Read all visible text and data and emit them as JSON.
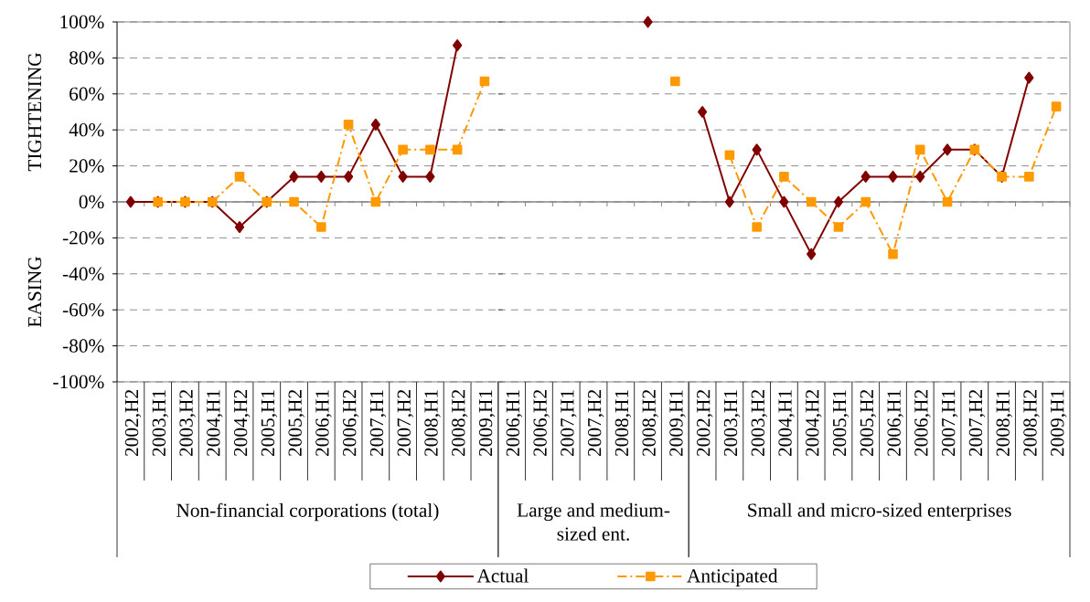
{
  "chart_data": [
    {
      "type": "line",
      "xlabel": "Non-financial corporations (total)",
      "annotations": [
        "TIGHTENING",
        "EASING"
      ],
      "categories": [
        "2002,H2",
        "2003,H1",
        "2003,H2",
        "2004,H1",
        "2004,H2",
        "2005,H1",
        "2005,H2",
        "2006,H1",
        "2006,H2",
        "2007,H1",
        "2007,H2",
        "2008,H1",
        "2008,H2",
        "2009,H1"
      ],
      "series": [
        {
          "color": "#800000",
          "marker": "diamond",
          "line_style": "solid",
          "values": [
            0,
            0,
            0,
            0,
            -14,
            0,
            14,
            14,
            14,
            43,
            14,
            14,
            87,
            null
          ]
        },
        {
          "color": "#ff9900",
          "marker": "square",
          "line_style": "dashed",
          "values": [
            null,
            0,
            0,
            0,
            14,
            0,
            0,
            -14,
            43,
            0,
            29,
            29,
            29,
            67
          ]
        }
      ],
      "ylim": [
        -100,
        100
      ],
      "yticks": [
        {
          "value": -100,
          "label": "-100%"
        },
        {
          "value": -80,
          "label": "-80%"
        },
        {
          "value": -60,
          "label": "-60%"
        },
        {
          "value": -40,
          "label": "-40%"
        },
        {
          "value": -20,
          "label": "-20%"
        },
        {
          "value": 0,
          "label": "0%"
        },
        {
          "value": 20,
          "label": "20%"
        },
        {
          "value": 40,
          "label": "40%"
        },
        {
          "value": 60,
          "label": "60%"
        },
        {
          "value": 80,
          "label": "80%"
        },
        {
          "value": 100,
          "label": "100%"
        }
      ],
      "grid": "y"
    },
    {
      "type": "line",
      "xlabel": "Large and medium-sized ent.",
      "categories": [
        "2006,H1",
        "2006,H2",
        "2007,H1",
        "2007,H2",
        "2008,H1",
        "2008,H2",
        "2009,H1"
      ],
      "series": [
        {
          "name": "Actual",
          "color": "#800000",
          "marker": "diamond",
          "line_style": "solid",
          "values": [
            null,
            null,
            null,
            null,
            null,
            100,
            null
          ]
        },
        {
          "name": "Anticipated",
          "color": "#ff9900",
          "marker": "square",
          "line_style": "dashed",
          "values": [
            null,
            null,
            null,
            null,
            null,
            null,
            67
          ]
        }
      ],
      "ylim": [
        -100,
        100
      ],
      "yticks": [
        -100,
        -80,
        -60,
        -40,
        -20,
        0,
        20,
        40,
        60,
        80,
        100
      ],
      "tick_labels": "x",
      "grid": "y",
      "legend": "bottom"
    },
    {
      "type": "line",
      "xlabel": "Small and micro-sized enterprises",
      "categories": [
        "2002,H2",
        "2003,H1",
        "2003,H2",
        "2004,H1",
        "2004,H2",
        "2005,H1",
        "2005,H2",
        "2006,H1",
        "2006,H2",
        "2007,H1",
        "2007,H2",
        "2008,H1",
        "2008,H2",
        "2009,H1"
      ],
      "series": [
        {
          "color": "#800000",
          "marker": "diamond",
          "line_style": "solid",
          "values": [
            50,
            0,
            29,
            0,
            -29,
            0,
            14,
            14,
            14,
            29,
            29,
            14,
            69,
            null
          ]
        },
        {
          "color": "#ff9900",
          "marker": "square",
          "line_style": "dashed",
          "values": [
            null,
            26,
            -14,
            14,
            0,
            -14,
            0,
            -29,
            29,
            0,
            29,
            14,
            14,
            53
          ]
        }
      ],
      "ylim": [
        -100,
        100
      ],
      "yticks": [
        -100,
        -80,
        -60,
        -40,
        -20,
        0,
        20,
        40,
        60,
        80,
        100
      ],
      "tick_labels": "x",
      "grid": "y"
    }
  ]
}
